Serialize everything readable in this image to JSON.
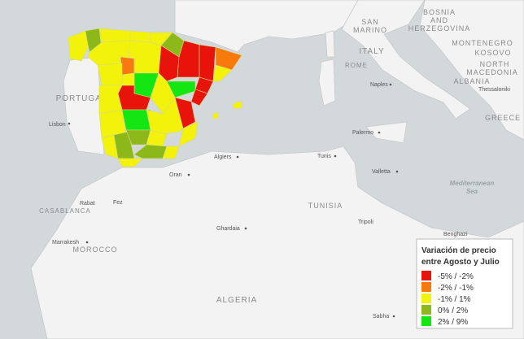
{
  "map": {
    "labels": [
      "BOSNIA",
      "AND",
      "HERZEGOVINA",
      "SAN",
      "MARINO",
      "ITALY",
      "MONTENEGRO",
      "KOSOVO",
      "NORTH",
      "MACEDONIA",
      "ALBANIA",
      "Thessaloniki",
      "ROME",
      "Naples",
      "PORTUGAL",
      "Lisbon",
      "Palermo",
      "GREECE",
      "Algiers",
      "Tunis",
      "Oran",
      "Valletta",
      "Mediterranean",
      "Sea",
      "Rabat",
      "Fez",
      "CASABLANCA",
      "TUNISIA",
      "Tripoli",
      "Marrakesh",
      "Ghardaia",
      "MOROCCO",
      "Benghazi",
      "ALGERIA",
      "Sabha"
    ],
    "legend": {
      "title": [
        "Variación de precio",
        "entre Agosto y Julio"
      ],
      "items": [
        {
          "label": "-5% / -2%",
          "color": "#e8140c"
        },
        {
          "label": "-2% / -1%",
          "color": "#f97a0c"
        },
        {
          "label": "-1% / 1%",
          "color": "#f2f20a"
        },
        {
          "label": "0% / 2%",
          "color": "#8cb81a"
        },
        {
          "label": "2% / 9%",
          "color": "#14e614"
        }
      ]
    }
  }
}
